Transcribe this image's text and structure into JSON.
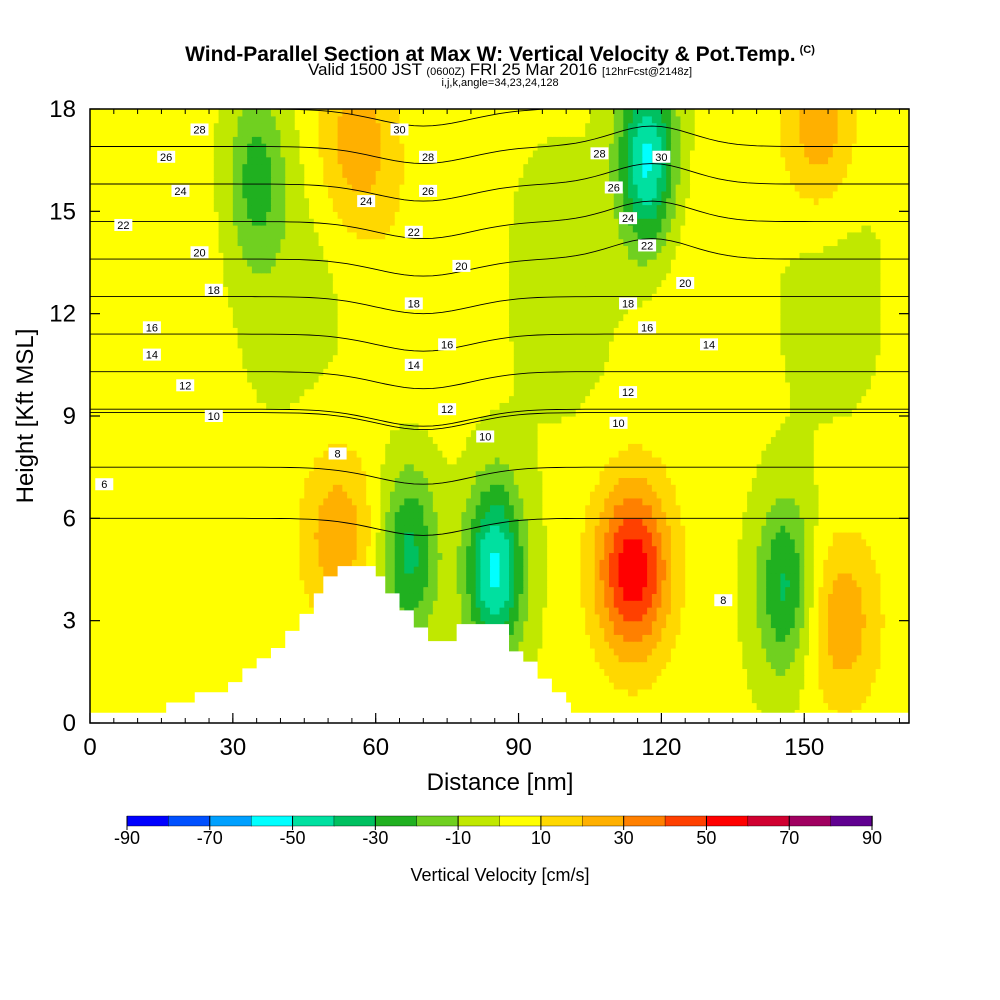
{
  "header": {
    "title": "Wind-Parallel Section at Max W: Vertical Velocity & Pot.Temp.",
    "copyright": "(C)",
    "valid_main": "Valid 1500 JST",
    "valid_utc": "(0600Z)",
    "valid_date": "FRI 25 Mar 2016",
    "forecast": "[12hrFcst@2148z]",
    "ijk": "i,j,k,angle=34,23,24,128"
  },
  "chart_data": {
    "type": "heatmap",
    "xlabel": "Distance [nm]",
    "ylabel": "Height [Kft MSL]",
    "xlim": [
      0,
      172
    ],
    "ylim": [
      0,
      18
    ],
    "xticks": [
      0,
      30,
      60,
      90,
      120,
      150
    ],
    "yticks": [
      0,
      3,
      6,
      9,
      12,
      15,
      18
    ],
    "colorbar": {
      "label": "Vertical Velocity [cm/s]",
      "tick_labels": [
        "-90",
        "-70",
        "-50",
        "-30",
        "-10",
        "10",
        "30",
        "50",
        "70",
        "90"
      ],
      "colors": [
        "#0000ff",
        "#0050ff",
        "#00a0ff",
        "#00ffff",
        "#00e0a0",
        "#00c060",
        "#20b020",
        "#70d020",
        "#c0e800",
        "#ffff00",
        "#ffd800",
        "#ffb000",
        "#ff8000",
        "#ff4000",
        "#ff0000",
        "#d00030",
        "#a00060",
        "#600090"
      ]
    },
    "velocity_features": [
      {
        "type": "updraft",
        "x": 114,
        "y": 4.5,
        "value": 55
      },
      {
        "type": "updraft",
        "x": 52,
        "y": 5.5,
        "value": 25
      },
      {
        "type": "updraft",
        "x": 158,
        "y": 3.0,
        "value": 25
      },
      {
        "type": "updraft",
        "x": 56,
        "y": 17.0,
        "value": 25
      },
      {
        "type": "updraft",
        "x": 153,
        "y": 17.5,
        "value": 25
      },
      {
        "type": "downdraft",
        "x": 85,
        "y": 4.5,
        "value": -55
      },
      {
        "type": "downdraft",
        "x": 67,
        "y": 5.0,
        "value": -35
      },
      {
        "type": "downdraft",
        "x": 146,
        "y": 4.0,
        "value": -35
      },
      {
        "type": "downdraft",
        "x": 117,
        "y": 16.5,
        "value": -55
      },
      {
        "type": "downdraft",
        "x": 35,
        "y": 16.0,
        "value": -25
      }
    ],
    "theta_contours": [
      {
        "value": 6,
        "label": "6",
        "label_x": 3,
        "label_y": 7.0
      },
      {
        "value": 8,
        "label": "8",
        "label_x": 52,
        "label_y": 7.9,
        "label2_x": 133,
        "label2_y": 3.6
      },
      {
        "value": 10,
        "label": "10",
        "label_x": 26,
        "label_y": 9.0,
        "label2_x": 83,
        "label2_y": 8.4,
        "label3_x": 111,
        "label3_y": 8.8
      },
      {
        "value": 12,
        "label": "12",
        "label_x": 20,
        "label_y": 9.9,
        "label2_x": 75,
        "label2_y": 9.2,
        "label3_x": 113,
        "label3_y": 9.7
      },
      {
        "value": 14,
        "label": "14",
        "label_x": 13,
        "label_y": 10.8,
        "label2_x": 68,
        "label2_y": 10.5,
        "label3_x": 130,
        "label3_y": 11.1
      },
      {
        "value": 16,
        "label": "16",
        "label_x": 13,
        "label_y": 11.6,
        "label2_x": 75,
        "label2_y": 11.1,
        "label3_x": 117,
        "label3_y": 11.6
      },
      {
        "value": 18,
        "label": "18",
        "label_x": 26,
        "label_y": 12.7,
        "label2_x": 68,
        "label2_y": 12.3,
        "label3_x": 113,
        "label3_y": 12.3
      },
      {
        "value": 20,
        "label": "20",
        "label_x": 23,
        "label_y": 13.8,
        "label2_x": 78,
        "label2_y": 13.4,
        "label3_x": 125,
        "label3_y": 12.9
      },
      {
        "value": 22,
        "label": "22",
        "label_x": 7,
        "label_y": 14.6,
        "label2_x": 68,
        "label2_y": 14.4,
        "label3_x": 117,
        "label3_y": 14.0
      },
      {
        "value": 24,
        "label": "24",
        "label_x": 19,
        "label_y": 15.6,
        "label2_x": 58,
        "label2_y": 15.3,
        "label3_x": 113,
        "label3_y": 14.8
      },
      {
        "value": 26,
        "label": "26",
        "label_x": 16,
        "label_y": 16.6,
        "label2_x": 71,
        "label2_y": 15.6,
        "label3_x": 110,
        "label3_y": 15.7
      },
      {
        "value": 28,
        "label": "28",
        "label_x": 23,
        "label_y": 17.4,
        "label2_x": 71,
        "label2_y": 16.6,
        "label3_x": 107,
        "label3_y": 16.7
      },
      {
        "value": 30,
        "label": "30",
        "label_x": 65,
        "label_y": 17.4,
        "label2_x": 120,
        "label2_y": 16.6
      }
    ]
  }
}
